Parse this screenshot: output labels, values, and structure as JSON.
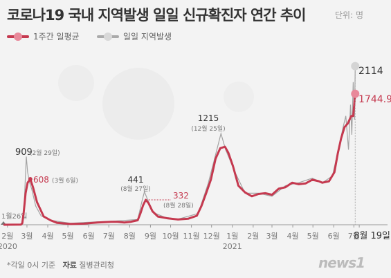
{
  "header": {
    "title": "코로나19 국내 지역발생 일일 신규확진자 연간 추이",
    "unit": "단위: 명"
  },
  "legend": {
    "avg_label": "1주간 일평균",
    "daily_label": "일일 지역발생"
  },
  "footer": {
    "note": "*각일 0시 기준",
    "source_label": "자료",
    "source": "질병관리청"
  },
  "logo": "news1",
  "colors": {
    "avg": "#c5394f",
    "daily": "#9f9f9f",
    "avg_marker": "#e8899a",
    "daily_marker": "#d4d4d4"
  },
  "chart_data": {
    "type": "line",
    "x_start_label": "1월26일",
    "x_ticks": [
      "2월",
      "3월",
      "4월",
      "5월",
      "6월",
      "7월",
      "8월",
      "9월",
      "10월",
      "11월",
      "12월",
      "1월",
      "2월",
      "3월",
      "4월",
      "5월",
      "6월",
      "7월",
      "8월 19일"
    ],
    "year_labels": [
      "2020",
      "2021"
    ],
    "series": [
      {
        "name": "1주간 일평균",
        "points": [
          [
            0,
            0
          ],
          [
            26,
            2
          ],
          [
            28,
            20
          ],
          [
            30,
            150
          ],
          [
            33,
            420
          ],
          [
            36,
            560
          ],
          [
            40,
            608
          ],
          [
            44,
            500
          ],
          [
            50,
            300
          ],
          [
            60,
            110
          ],
          [
            70,
            60
          ],
          [
            80,
            25
          ],
          [
            100,
            10
          ],
          [
            120,
            15
          ],
          [
            140,
            30
          ],
          [
            150,
            35
          ],
          [
            160,
            40
          ],
          [
            170,
            40
          ],
          [
            180,
            30
          ],
          [
            190,
            40
          ],
          [
            200,
            60
          ],
          [
            204,
            150
          ],
          [
            208,
            260
          ],
          [
            212,
            332
          ],
          [
            216,
            290
          ],
          [
            222,
            180
          ],
          [
            230,
            110
          ],
          [
            245,
            85
          ],
          [
            260,
            70
          ],
          [
            275,
            80
          ],
          [
            288,
            120
          ],
          [
            295,
            250
          ],
          [
            302,
            420
          ],
          [
            309,
            600
          ],
          [
            316,
            880
          ],
          [
            323,
            1020
          ],
          [
            330,
            1040
          ],
          [
            335,
            960
          ],
          [
            342,
            780
          ],
          [
            350,
            520
          ],
          [
            360,
            430
          ],
          [
            370,
            380
          ],
          [
            380,
            410
          ],
          [
            390,
            420
          ],
          [
            400,
            400
          ],
          [
            410,
            480
          ],
          [
            420,
            500
          ],
          [
            430,
            560
          ],
          [
            440,
            540
          ],
          [
            450,
            550
          ],
          [
            460,
            600
          ],
          [
            470,
            580
          ],
          [
            475,
            560
          ],
          [
            485,
            580
          ],
          [
            493,
            700
          ],
          [
            498,
            950
          ],
          [
            503,
            1150
          ],
          [
            508,
            1300
          ],
          [
            513,
            1350
          ],
          [
            518,
            1450
          ],
          [
            521,
            1450
          ],
          [
            524,
            1744.9
          ]
        ]
      },
      {
        "name": "일일 지역발생",
        "points": [
          [
            0,
            0
          ],
          [
            26,
            2
          ],
          [
            28,
            30
          ],
          [
            31,
            300
          ],
          [
            34,
            909
          ],
          [
            36,
            700
          ],
          [
            39,
            560
          ],
          [
            42,
            480
          ],
          [
            48,
            250
          ],
          [
            56,
            120
          ],
          [
            70,
            60
          ],
          [
            100,
            20
          ],
          [
            140,
            40
          ],
          [
            160,
            45
          ],
          [
            200,
            70
          ],
          [
            206,
            300
          ],
          [
            210,
            441
          ],
          [
            215,
            330
          ],
          [
            224,
            160
          ],
          [
            240,
            100
          ],
          [
            260,
            75
          ],
          [
            290,
            150
          ],
          [
            305,
            550
          ],
          [
            315,
            900
          ],
          [
            324,
            1215
          ],
          [
            331,
            1000
          ],
          [
            345,
            700
          ],
          [
            360,
            420
          ],
          [
            380,
            420
          ],
          [
            400,
            380
          ],
          [
            420,
            520
          ],
          [
            440,
            560
          ],
          [
            460,
            620
          ],
          [
            475,
            560
          ],
          [
            490,
            650
          ],
          [
            500,
            1050
          ],
          [
            506,
            1300
          ],
          [
            510,
            1450
          ],
          [
            514,
            1000
          ],
          [
            517,
            1600
          ],
          [
            519,
            1200
          ],
          [
            521,
            1900
          ],
          [
            523,
            1400
          ],
          [
            524,
            2114
          ]
        ]
      }
    ],
    "annotations": [
      {
        "value": "909",
        "date": "(2월 29일)",
        "series": "일일 지역발생"
      },
      {
        "value": "608",
        "date": "(3월 6일)",
        "series": "1주간 일평균"
      },
      {
        "value": "441",
        "date": "(8월 27일)",
        "series": "일일 지역발생"
      },
      {
        "value": "332",
        "date": "(8월 28일)",
        "series": "1주간 일평균"
      },
      {
        "value": "1215",
        "date": "(12월 25일)",
        "series": "일일 지역발생"
      },
      {
        "value": "2114",
        "date": "",
        "series": "일일 지역발생"
      },
      {
        "value": "1744.9",
        "date": "",
        "series": "1주간 일평균"
      }
    ],
    "grid": false
  }
}
